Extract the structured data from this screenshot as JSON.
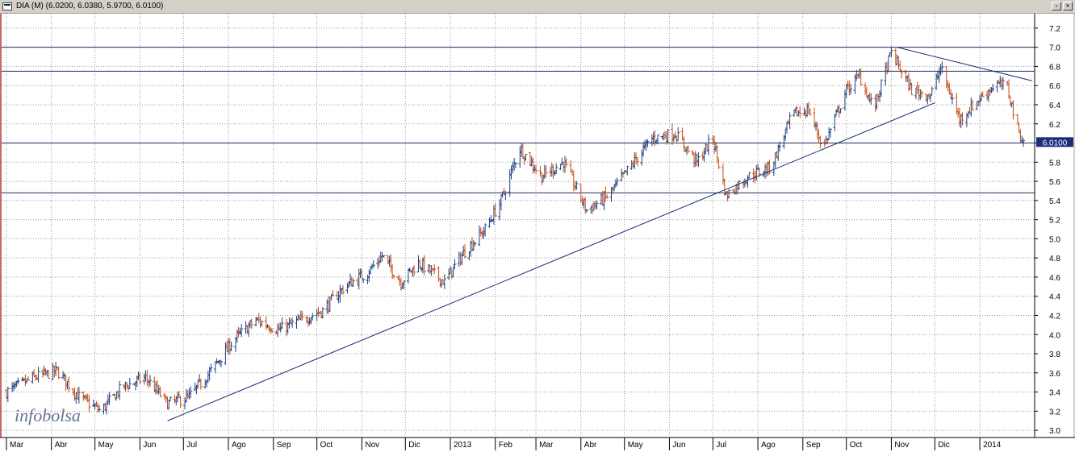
{
  "window": {
    "title": "DIA (M) (6.0200, 6.0380, 5.9700, 6.0100)",
    "restore_glyph": "▫",
    "close_glyph": "×"
  },
  "watermark": "infobolsa",
  "colors": {
    "background": "#ffffff",
    "up_bar": "#1f3f7f",
    "down_bar": "#c84a10",
    "grid": "#9a9a9a",
    "hline": "#1a2e5a",
    "trendline": "#1a2e7a",
    "last_price_bg": "#1a2e7a",
    "watermark": "#4a5a82"
  },
  "chart_data": {
    "type": "ohlc",
    "symbol": "DIA",
    "last": {
      "open": 6.02,
      "high": 6.038,
      "low": 5.97,
      "close": 6.01,
      "label": "6.0100"
    },
    "ylim": [
      2.9,
      7.3
    ],
    "y_ticks": [
      3.0,
      3.2,
      3.4,
      3.6,
      3.8,
      4.0,
      4.2,
      4.4,
      4.6,
      4.8,
      5.0,
      5.2,
      5.4,
      5.6,
      5.8,
      6.0,
      6.2,
      6.4,
      6.6,
      6.8,
      7.0,
      7.2
    ],
    "y_tick_labels": [
      "3.0",
      "3.2",
      "3.4",
      "3.6",
      "3.8",
      "4.0",
      "4.2",
      "4.4",
      "4.6",
      "4.8",
      "5.0",
      "5.2",
      "5.4",
      "5.6",
      "5.8",
      "6.0",
      "6.2",
      "6.4",
      "6.6",
      "6.8",
      "7.0",
      "7.2"
    ],
    "x_labels": [
      "Mar",
      "Abr",
      "May",
      "Jun",
      "Jul",
      "Ago",
      "Sep",
      "Oct",
      "Nov",
      "Dic",
      "2013",
      "Feb",
      "Mar",
      "Abr",
      "May",
      "Jun",
      "Jul",
      "Ago",
      "Sep",
      "Oct",
      "Nov",
      "Dic",
      "2014"
    ],
    "x_range": [
      "2012-03-01",
      "2014-01-31"
    ],
    "x_label_dates": [
      "2012-03-01",
      "2012-04-01",
      "2012-05-01",
      "2012-06-01",
      "2012-07-01",
      "2012-08-01",
      "2012-09-01",
      "2012-10-01",
      "2012-11-01",
      "2012-12-01",
      "2013-01-01",
      "2013-02-01",
      "2013-03-01",
      "2013-04-01",
      "2013-05-01",
      "2013-06-01",
      "2013-07-01",
      "2013-08-01",
      "2013-09-01",
      "2013-10-01",
      "2013-11-01",
      "2013-12-01",
      "2014-01-01"
    ],
    "close_anchors": [
      [
        "2012-03-01",
        3.4
      ],
      [
        "2012-03-20",
        3.55
      ],
      [
        "2012-04-05",
        3.62
      ],
      [
        "2012-04-20",
        3.35
      ],
      [
        "2012-05-05",
        3.2
      ],
      [
        "2012-05-20",
        3.45
      ],
      [
        "2012-06-05",
        3.55
      ],
      [
        "2012-06-20",
        3.28
      ],
      [
        "2012-07-05",
        3.35
      ],
      [
        "2012-07-20",
        3.62
      ],
      [
        "2012-08-05",
        3.95
      ],
      [
        "2012-08-20",
        4.15
      ],
      [
        "2012-09-05",
        4.05
      ],
      [
        "2012-09-20",
        4.15
      ],
      [
        "2012-10-05",
        4.25
      ],
      [
        "2012-10-20",
        4.5
      ],
      [
        "2012-11-05",
        4.65
      ],
      [
        "2012-11-15",
        4.82
      ],
      [
        "2012-11-28",
        4.55
      ],
      [
        "2012-12-10",
        4.75
      ],
      [
        "2012-12-28",
        4.55
      ],
      [
        "2013-01-10",
        4.85
      ],
      [
        "2013-01-25",
        5.1
      ],
      [
        "2013-02-05",
        5.4
      ],
      [
        "2013-02-18",
        5.95
      ],
      [
        "2013-03-05",
        5.65
      ],
      [
        "2013-03-20",
        5.8
      ],
      [
        "2013-04-05",
        5.3
      ],
      [
        "2013-04-20",
        5.45
      ],
      [
        "2013-05-05",
        5.75
      ],
      [
        "2013-05-20",
        6.05
      ],
      [
        "2013-06-05",
        6.1
      ],
      [
        "2013-06-20",
        5.8
      ],
      [
        "2013-07-01",
        6.05
      ],
      [
        "2013-07-10",
        5.45
      ],
      [
        "2013-07-25",
        5.65
      ],
      [
        "2013-08-10",
        5.75
      ],
      [
        "2013-08-25",
        6.3
      ],
      [
        "2013-09-05",
        6.35
      ],
      [
        "2013-09-15",
        5.95
      ],
      [
        "2013-10-01",
        6.55
      ],
      [
        "2013-10-10",
        6.7
      ],
      [
        "2013-10-20",
        6.35
      ],
      [
        "2013-11-01",
        6.95
      ],
      [
        "2013-11-15",
        6.55
      ],
      [
        "2013-11-28",
        6.5
      ],
      [
        "2013-12-05",
        6.78
      ],
      [
        "2013-12-18",
        6.25
      ],
      [
        "2013-12-31",
        6.45
      ],
      [
        "2014-01-12",
        6.62
      ],
      [
        "2014-01-20",
        6.58
      ],
      [
        "2014-01-27",
        6.15
      ],
      [
        "2014-01-31",
        6.01
      ]
    ],
    "horizontal_lines": [
      7.0,
      6.75,
      6.0,
      5.48
    ],
    "trendlines": [
      {
        "from": [
          "2012-06-20",
          3.1
        ],
        "to": [
          "2013-12-01",
          6.42
        ]
      },
      {
        "from": [
          "2013-11-05",
          7.0
        ],
        "to": [
          "2014-02-06",
          6.65
        ]
      }
    ]
  }
}
